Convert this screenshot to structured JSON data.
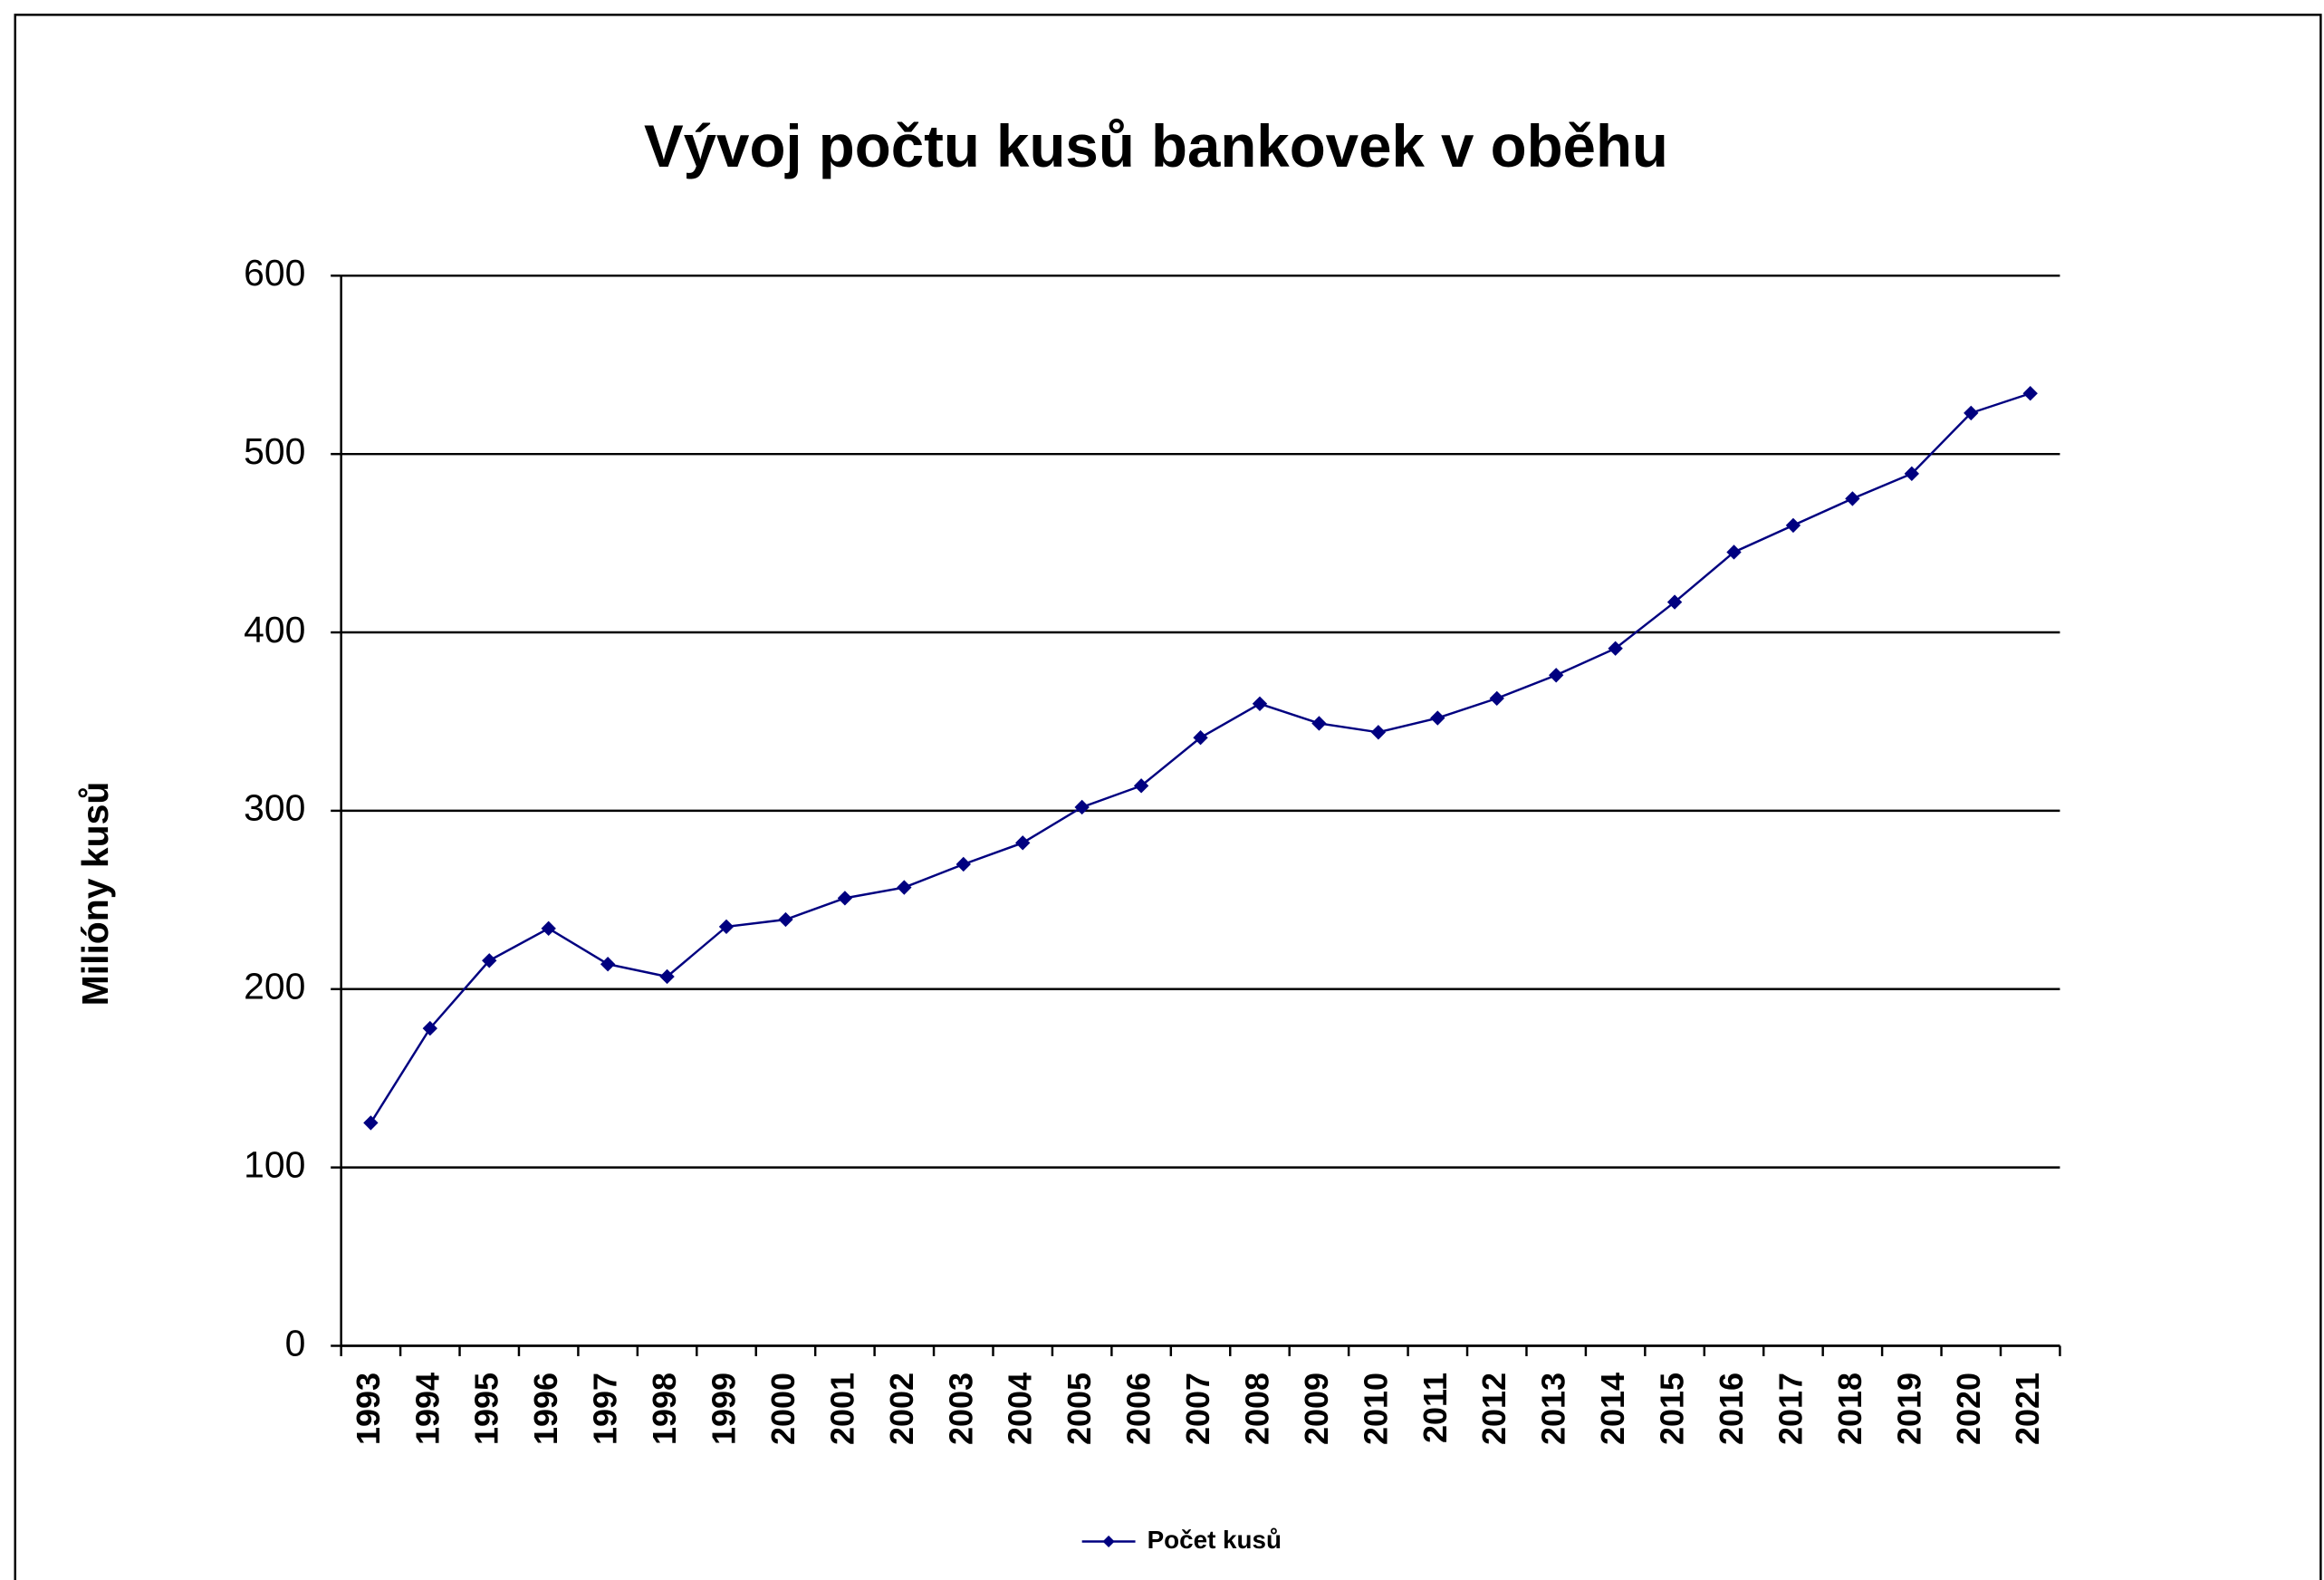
{
  "chart_data": {
    "type": "line",
    "title": "Vývoj počtu kusů bankovek v oběhu",
    "y_label": "Milióny kusů",
    "categories": [
      "1993",
      "1994",
      "1995",
      "1996",
      "1997",
      "1998",
      "1999",
      "2000",
      "2001",
      "2002",
      "2003",
      "2004",
      "2005",
      "2006",
      "2007",
      "2008",
      "2009",
      "2010",
      "2011",
      "2012",
      "2013",
      "2014",
      "2015",
      "2016",
      "2017",
      "2018",
      "2019",
      "2020",
      "2021"
    ],
    "series": [
      {
        "name": "Počet kusů",
        "color": "#000080",
        "values": [
          125,
          178,
          216,
          234,
          214,
          207,
          235,
          239,
          251,
          257,
          270,
          282,
          302,
          314,
          341,
          360,
          349,
          344,
          352,
          363,
          376,
          391,
          417,
          445,
          460,
          475,
          489,
          523,
          534
        ]
      }
    ],
    "ylim": [
      0,
      600
    ],
    "yticks": [
      0,
      100,
      200,
      300,
      400,
      500,
      600
    ],
    "grid": true,
    "legend": "bottom"
  }
}
